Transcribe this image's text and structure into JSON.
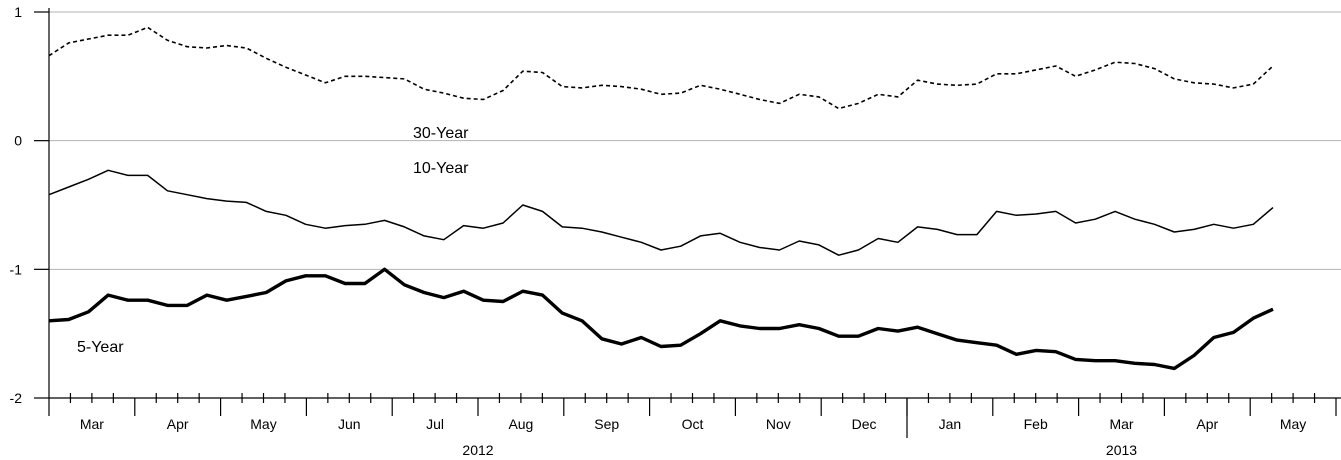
{
  "chart_data": {
    "type": "line",
    "title": "",
    "xlabel": "",
    "ylabel": "",
    "ylim": [
      -2,
      1
    ],
    "y_ticks": [
      1,
      0,
      -1,
      -2
    ],
    "y_tick_labels": [
      "1",
      "0",
      "-1",
      "-2"
    ],
    "grid": "horizontal",
    "month_labels": [
      "Mar",
      "Apr",
      "May",
      "Jun",
      "Jul",
      "Aug",
      "Sep",
      "Oct",
      "Nov",
      "Dec",
      "Jan",
      "Feb",
      "Mar",
      "Apr",
      "May"
    ],
    "year_labels": [
      "2012",
      "2013"
    ],
    "series": [
      {
        "name": "30-Year",
        "style": "dashed",
        "values": [
          0.66,
          0.76,
          0.79,
          0.82,
          0.82,
          0.88,
          0.78,
          0.73,
          0.72,
          0.74,
          0.72,
          0.64,
          0.57,
          0.51,
          0.45,
          0.5,
          0.5,
          0.49,
          0.48,
          0.4,
          0.37,
          0.33,
          0.32,
          0.39,
          0.54,
          0.53,
          0.42,
          0.41,
          0.43,
          0.42,
          0.4,
          0.36,
          0.37,
          0.43,
          0.4,
          0.36,
          0.32,
          0.29,
          0.36,
          0.34,
          0.25,
          0.29,
          0.36,
          0.34,
          0.47,
          0.44,
          0.43,
          0.44,
          0.52,
          0.52,
          0.55,
          0.58,
          0.5,
          0.55,
          0.61,
          0.6,
          0.56,
          0.48,
          0.45,
          0.44,
          0.41,
          0.44,
          0.58
        ]
      },
      {
        "name": "10-Year",
        "style": "thin",
        "values": [
          -0.42,
          -0.36,
          -0.3,
          -0.23,
          -0.27,
          -0.27,
          -0.39,
          -0.42,
          -0.45,
          -0.47,
          -0.48,
          -0.55,
          -0.58,
          -0.65,
          -0.68,
          -0.66,
          -0.65,
          -0.62,
          -0.67,
          -0.74,
          -0.77,
          -0.66,
          -0.68,
          -0.64,
          -0.5,
          -0.55,
          -0.67,
          -0.68,
          -0.71,
          -0.75,
          -0.79,
          -0.85,
          -0.82,
          -0.74,
          -0.72,
          -0.79,
          -0.83,
          -0.85,
          -0.78,
          -0.81,
          -0.89,
          -0.85,
          -0.76,
          -0.79,
          -0.67,
          -0.69,
          -0.73,
          -0.73,
          -0.55,
          -0.58,
          -0.57,
          -0.55,
          -0.64,
          -0.61,
          -0.55,
          -0.61,
          -0.65,
          -0.71,
          -0.69,
          -0.65,
          -0.68,
          -0.65,
          -0.52
        ]
      },
      {
        "name": "5-Year",
        "style": "thick",
        "values": [
          -1.4,
          -1.39,
          -1.33,
          -1.2,
          -1.24,
          -1.24,
          -1.28,
          -1.28,
          -1.2,
          -1.24,
          -1.21,
          -1.18,
          -1.09,
          -1.05,
          -1.05,
          -1.11,
          -1.11,
          -1.0,
          -1.12,
          -1.18,
          -1.22,
          -1.17,
          -1.24,
          -1.25,
          -1.17,
          -1.2,
          -1.34,
          -1.4,
          -1.54,
          -1.58,
          -1.53,
          -1.6,
          -1.59,
          -1.5,
          -1.4,
          -1.44,
          -1.46,
          -1.46,
          -1.43,
          -1.46,
          -1.52,
          -1.52,
          -1.46,
          -1.48,
          -1.45,
          -1.5,
          -1.55,
          -1.57,
          -1.59,
          -1.66,
          -1.63,
          -1.64,
          -1.7,
          -1.71,
          -1.71,
          -1.73,
          -1.74,
          -1.77,
          -1.67,
          -1.53,
          -1.49,
          -1.38,
          -1.31
        ]
      }
    ]
  }
}
